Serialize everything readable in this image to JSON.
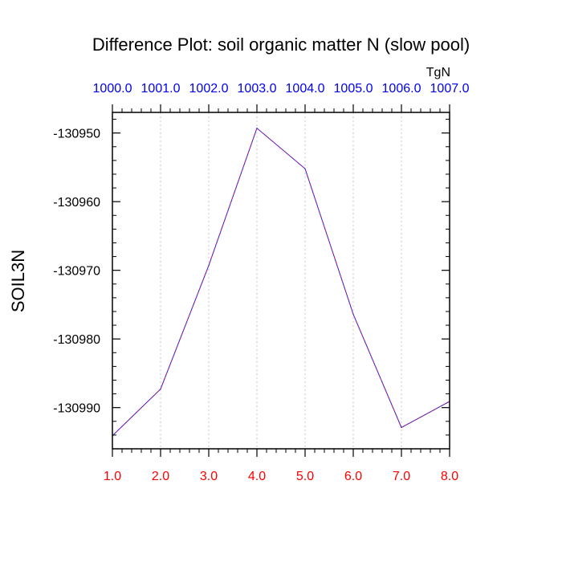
{
  "chart_data": {
    "type": "line",
    "title": "Difference Plot: soil organic matter N (slow pool)",
    "ylabel": "SOIL3N",
    "units": "TgN",
    "x": [
      1,
      2,
      3,
      4,
      5,
      6,
      7,
      8
    ],
    "xlim": [
      1,
      8
    ],
    "ylim": [
      -130996,
      -130947
    ],
    "x_ticks_bottom": [
      "1.0",
      "2.0",
      "3.0",
      "4.0",
      "5.0",
      "6.0",
      "7.0",
      "8.0"
    ],
    "x_ticks_top": [
      "1000.0",
      "1001.0",
      "1002.0",
      "1003.0",
      "1004.0",
      "1005.0",
      "1006.0",
      "1007.0"
    ],
    "y_ticks": [
      -130950,
      -130960,
      -130970,
      -130980,
      -130990
    ],
    "y_tick_labels": [
      "-130950",
      "-130960",
      "-130970",
      "-130980",
      "-130990"
    ],
    "series": [
      {
        "values": [
          -130994.1,
          -130987.3,
          -130969.3,
          -130949.3,
          -130955.2,
          -130976.4,
          -130992.9,
          -130989.1
        ]
      }
    ],
    "grid": "vertical dotted",
    "colors": {
      "line_primary": "#1f1fd0",
      "line_secondary": "#c0208a",
      "bottom_ticks": "#ff0000",
      "top_ticks": "#0000ee",
      "grid": "#c8c8c8",
      "axis": "#000000"
    }
  }
}
